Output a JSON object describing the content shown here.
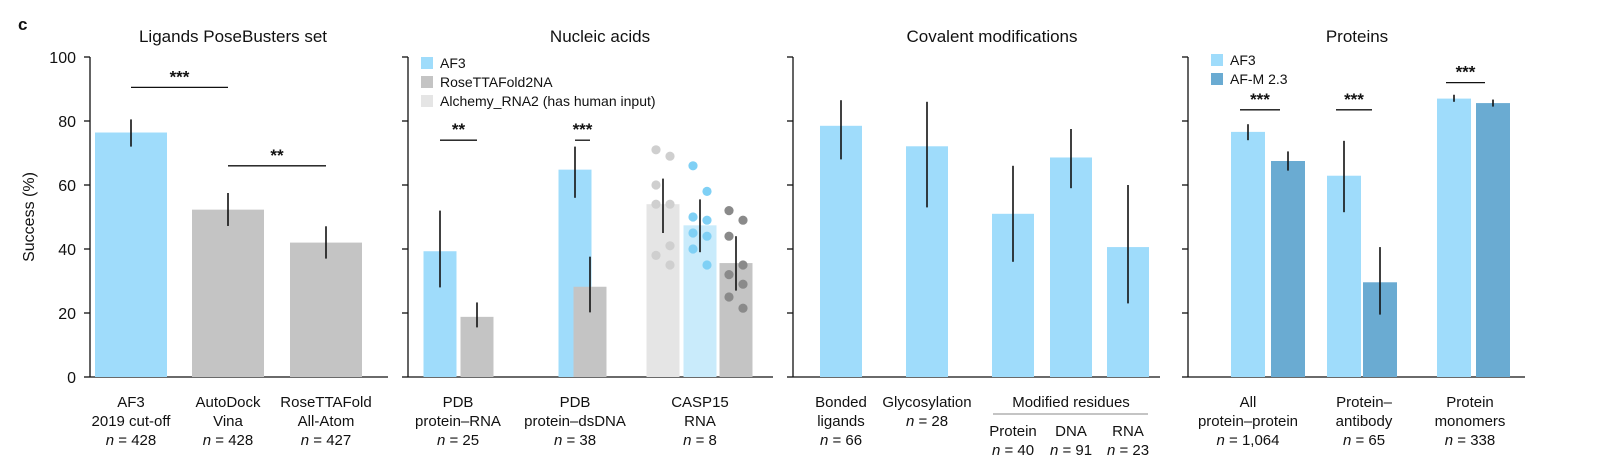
{
  "figure_label": "c",
  "y_axis": {
    "label": "Success (%)",
    "ticks": [
      "0",
      "20",
      "40",
      "60",
      "80",
      "100"
    ]
  },
  "colors": {
    "af3": "#9fdcfb",
    "af3_light": "#c9ebfb",
    "grey": "#c4c4c4",
    "light_grey": "#e5e5e5",
    "afm": "#6aabd2",
    "dot_light": "#cfcfcf",
    "dot_dark": "#8a8a8a",
    "dot_blue": "#7fd0f5"
  },
  "chart_data": [
    {
      "type": "bar",
      "title": "Ligands PoseBusters set",
      "ylabel": "Success (%)",
      "ylim": [
        0,
        100
      ],
      "bars": [
        {
          "value": 76.4,
          "err": [
            72,
            80.5
          ],
          "color": "af3"
        },
        {
          "value": 52.3,
          "err": [
            47.2,
            57.5
          ],
          "color": "grey"
        },
        {
          "value": 42.0,
          "err": [
            37.0,
            47.1
          ],
          "color": "grey"
        }
      ],
      "categories": [
        {
          "lines": [
            "AF3",
            "2019 cut-off",
            "n = 428"
          ]
        },
        {
          "lines": [
            "AutoDock",
            "Vina",
            "n = 428"
          ]
        },
        {
          "lines": [
            "RoseTTAFold",
            "All-Atom",
            "n = 427"
          ]
        }
      ],
      "significance": [
        {
          "from": 0,
          "to": 1,
          "label": "***",
          "y": 90.5
        },
        {
          "from": 1,
          "to": 2,
          "label": "**",
          "y": 66
        }
      ]
    },
    {
      "type": "bar",
      "title": "Nucleic acids",
      "ylim": [
        0,
        100
      ],
      "legend": [
        {
          "label": "AF3",
          "color": "af3"
        },
        {
          "label": "RoseTTAFold2NA",
          "color": "grey"
        },
        {
          "label": "Alchemy_RNA2 (has human input)",
          "color": "light_grey"
        }
      ],
      "groups": [
        {
          "lines": [
            "PDB",
            "protein–RNA",
            "n = 25"
          ],
          "bars": [
            {
              "value": 39.3,
              "err": [
                28,
                52
              ],
              "color": "af3"
            },
            {
              "value": 18.8,
              "err": [
                15.5,
                23.3
              ],
              "color": "grey"
            }
          ],
          "significance": {
            "label": "**",
            "y": 74
          }
        },
        {
          "lines": [
            "PDB",
            "protein–dsDNA",
            "n = 38"
          ],
          "bars": [
            {
              "value": 64.8,
              "err": [
                56,
                72
              ],
              "color": "af3"
            },
            {
              "value": 28.2,
              "err": [
                20.2,
                37.6
              ],
              "color": "grey"
            }
          ],
          "significance": {
            "label": "***",
            "y": 74
          }
        },
        {
          "lines": [
            "CASP15",
            "RNA",
            "n = 8"
          ],
          "bars": [
            {
              "value": 54.0,
              "err": [
                45,
                62
              ],
              "color": "light_grey",
              "dots": [
                71,
                69,
                60,
                54,
                54,
                41,
                38,
                35
              ],
              "dot_color": "dot_light"
            },
            {
              "value": 47.4,
              "err": [
                39,
                55.5
              ],
              "color": "af3_light",
              "dots": [
                66,
                58,
                50,
                49,
                45,
                44,
                40,
                35
              ],
              "dot_color": "dot_blue"
            },
            {
              "value": 35.6,
              "err": [
                27,
                44
              ],
              "color": "grey",
              "dots": [
                52,
                49,
                44,
                35,
                32,
                29,
                25,
                21.5
              ],
              "dot_color": "dot_dark"
            }
          ]
        }
      ]
    },
    {
      "type": "bar",
      "title": "Covalent modifications",
      "ylim": [
        0,
        100
      ],
      "bars": [
        {
          "value": 78.5,
          "err": [
            68,
            86.5
          ],
          "color": "af3"
        },
        {
          "value": 72.1,
          "err": [
            53,
            86
          ],
          "color": "af3"
        },
        {
          "value": 51.0,
          "err": [
            36,
            66
          ],
          "color": "af3"
        },
        {
          "value": 68.6,
          "err": [
            59,
            77.5
          ],
          "color": "af3"
        },
        {
          "value": 40.6,
          "err": [
            23,
            60
          ],
          "color": "af3"
        }
      ],
      "categories": [
        {
          "lines": [
            "Bonded",
            "ligands",
            "n = 66"
          ]
        },
        {
          "lines": [
            "Glycosylation",
            "n = 28"
          ]
        },
        {
          "lines": [
            "Protein",
            "n = 40"
          ]
        },
        {
          "lines": [
            "DNA",
            "n = 91"
          ]
        },
        {
          "lines": [
            "RNA",
            "n = 23"
          ]
        }
      ],
      "bracket_label": "Modified residues"
    },
    {
      "type": "bar",
      "title": "Proteins",
      "ylim": [
        0,
        100
      ],
      "legend": [
        {
          "label": "AF3",
          "color": "af3"
        },
        {
          "label": "AF-M 2.3",
          "color": "afm"
        }
      ],
      "groups": [
        {
          "lines": [
            "All",
            "protein–protein",
            "n = 1,064"
          ],
          "bars": [
            {
              "value": 76.6,
              "err": [
                74,
                79
              ],
              "color": "af3"
            },
            {
              "value": 67.5,
              "err": [
                64.5,
                70.5
              ],
              "color": "afm"
            }
          ],
          "significance": {
            "label": "***",
            "y": 83.5
          }
        },
        {
          "lines": [
            "Protein–",
            "antibody",
            "n = 65"
          ],
          "bars": [
            {
              "value": 62.9,
              "err": [
                51.5,
                73.8
              ],
              "color": "af3"
            },
            {
              "value": 29.6,
              "err": [
                19.5,
                40.6
              ],
              "color": "afm"
            }
          ],
          "significance": {
            "label": "***",
            "y": 83.5
          }
        },
        {
          "lines": [
            "Protein",
            "monomers",
            "n = 338"
          ],
          "bars": [
            {
              "value": 87.0,
              "err": [
                86,
                88.2
              ],
              "color": "af3"
            },
            {
              "value": 85.6,
              "err": [
                84.5,
                86.7
              ],
              "color": "afm"
            }
          ],
          "significance": {
            "label": "***",
            "y": 92
          }
        }
      ]
    }
  ]
}
